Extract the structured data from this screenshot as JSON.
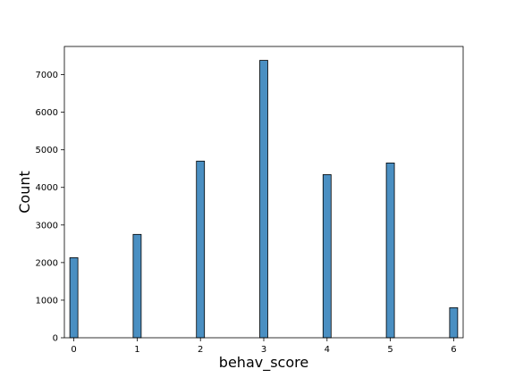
{
  "chart_data": {
    "type": "bar",
    "title": "",
    "xlabel": "behav_score",
    "ylabel": "Count",
    "x": [
      0,
      1,
      2,
      3,
      4,
      5,
      6
    ],
    "values": [
      2130,
      2750,
      4700,
      7380,
      4340,
      4650,
      800
    ],
    "xlim": [
      -0.15,
      6.15
    ],
    "ylim": [
      0,
      7750
    ],
    "xticks": [
      0,
      1,
      2,
      3,
      4,
      5,
      6
    ],
    "yticks": [
      0,
      1000,
      2000,
      3000,
      4000,
      5000,
      6000,
      7000
    ],
    "grid": false,
    "bar_color": "#4a8fc2",
    "edge_color": "#000000"
  }
}
